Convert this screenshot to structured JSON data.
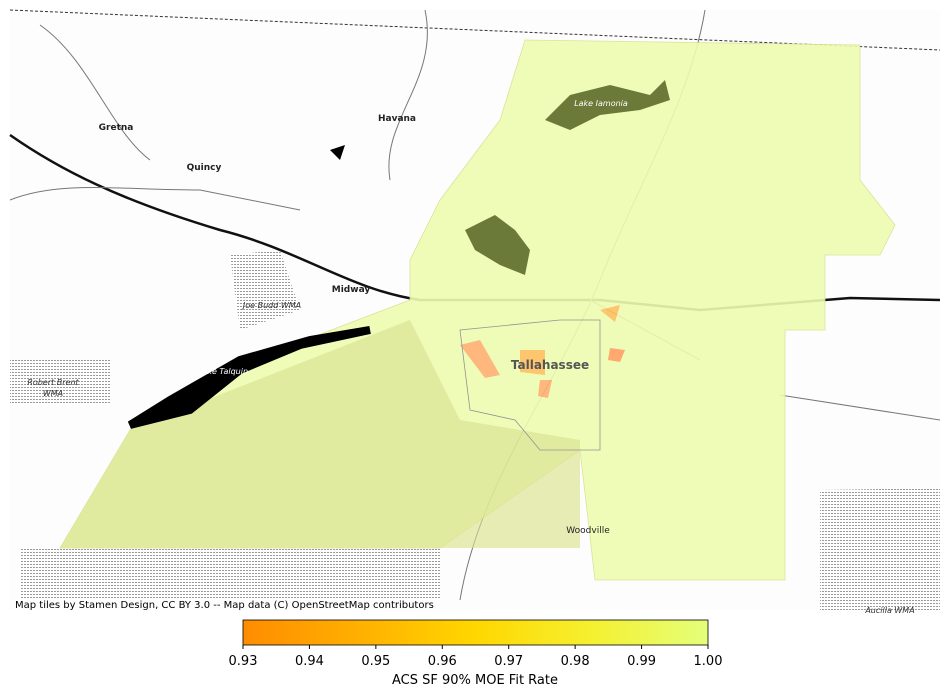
{
  "map": {
    "places": [
      "Gretna",
      "Quincy",
      "Havana",
      "Midway",
      "Tallahassee",
      "Woodville"
    ],
    "areas": [
      "Joe Budd WMA",
      "Lake Talquin",
      "Robert Brent",
      "WMA",
      "Lake Iamonia",
      "Aucilla WMA"
    ],
    "attribution": "Map tiles by Stamen Design, CC BY 3.0 -- Map data (C) OpenStreetMap contributors"
  },
  "colorbar": {
    "label": "ACS SF 90% MOE Fit Rate",
    "lim": [
      0.93,
      1.0
    ],
    "ticks": [
      0.93,
      0.94,
      0.95,
      0.96,
      0.97,
      0.98,
      0.99,
      {
        "value": 1.0,
        "label": "1.00"
      }
    ],
    "colors": [
      "#ff8c00",
      "#ffb000",
      "#ffd700",
      "#f5f030",
      "#e4ff7a"
    ]
  }
}
